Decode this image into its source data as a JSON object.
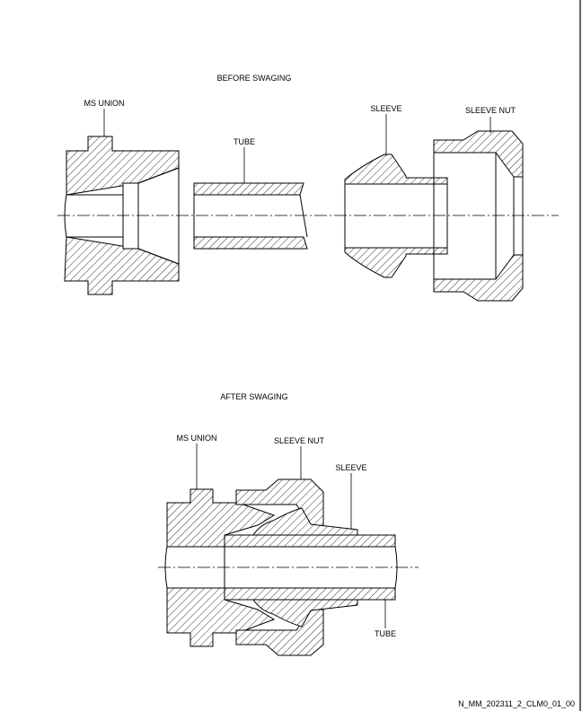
{
  "before": {
    "heading": "BEFORE SWAGING",
    "labels": {
      "ms_union": "MS UNION",
      "tube": "TUBE",
      "sleeve": "SLEEVE",
      "sleeve_nut": "SLEEVE NUT"
    }
  },
  "after": {
    "heading": "AFTER SWAGING",
    "labels": {
      "ms_union": "MS UNION",
      "sleeve_nut": "SLEEVE NUT",
      "sleeve": "SLEEVE",
      "tube": "TUBE"
    }
  },
  "figure_id": "N_MM_202311_2_CLM0_01_00"
}
